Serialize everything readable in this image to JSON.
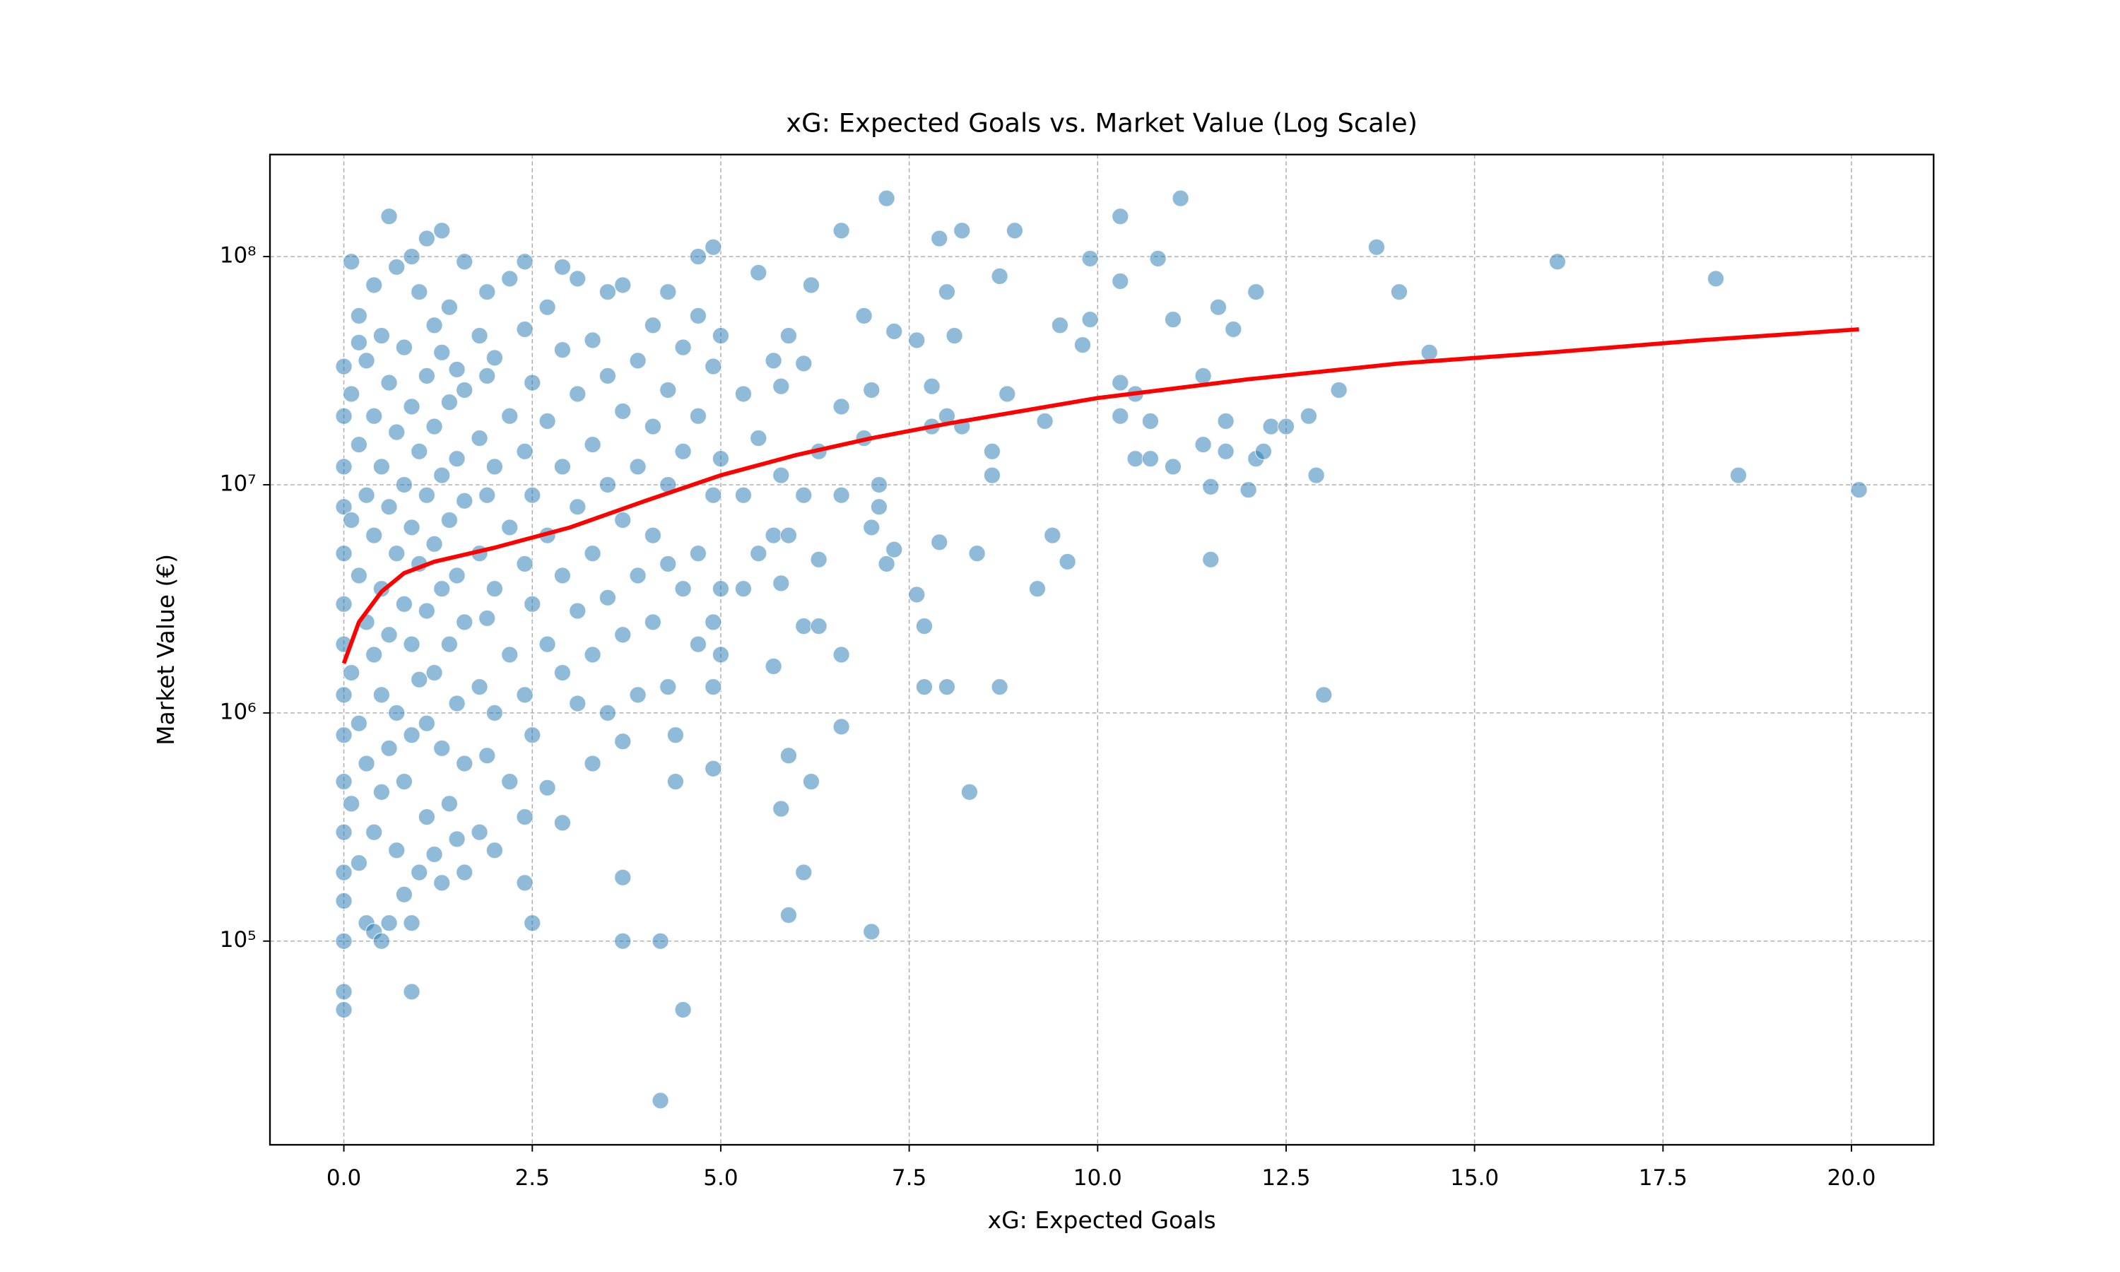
{
  "chart_data": {
    "type": "scatter",
    "title": "xG: Expected Goals vs. Market Value (Log Scale)",
    "x_label": "xG: Expected Goals",
    "y_label": "Market Value (€)",
    "xlim": [
      -0.98,
      21.09
    ],
    "ylim": [
      12800,
      280000000
    ],
    "y_scale": "log",
    "grid": true,
    "xticks": [
      {
        "value": 0,
        "label": "0.0"
      },
      2.5,
      {
        "value": 5,
        "label": "5.0"
      },
      7.5,
      {
        "value": 10,
        "label": "10.0"
      },
      12.5,
      {
        "value": 15,
        "label": "15.0"
      },
      17.5,
      {
        "value": 20,
        "label": "20.0"
      }
    ],
    "yticks": [
      {
        "value": 100000,
        "label": "10⁵"
      },
      {
        "value": 1000000,
        "label": "10⁶"
      },
      {
        "value": 10000000,
        "label": "10⁷"
      },
      {
        "value": 100000000,
        "label": "10⁸"
      }
    ],
    "series": [
      {
        "type": "scatter",
        "color": "#1f77b4",
        "alpha": 0.5,
        "x": [
          0,
          0,
          0,
          0,
          0,
          0,
          0,
          0,
          0,
          0,
          0,
          0,
          0,
          0,
          0,
          0,
          0.1,
          0.1,
          0.1,
          0.1,
          0.1,
          0.2,
          0.2,
          0.2,
          0.2,
          0.2,
          0.2,
          0.3,
          0.3,
          0.3,
          0.3,
          0.3,
          0.4,
          0.4,
          0.4,
          0.4,
          0.4,
          0.4,
          0.5,
          0.5,
          0.5,
          0.5,
          0.5,
          0.5,
          0.6,
          0.6,
          0.6,
          0.6,
          0.6,
          0.6,
          0.7,
          0.7,
          0.7,
          0.7,
          0.7,
          0.8,
          0.8,
          0.8,
          0.8,
          0.8,
          0.9,
          0.9,
          0.9,
          0.9,
          0.9,
          0.9,
          0.9,
          1.0,
          1.0,
          1.0,
          1.0,
          1.0,
          1.1,
          1.1,
          1.1,
          1.1,
          1.1,
          1.1,
          1.2,
          1.2,
          1.2,
          1.2,
          1.2,
          1.3,
          1.3,
          1.3,
          1.3,
          1.3,
          1.3,
          1.4,
          1.4,
          1.4,
          1.4,
          1.4,
          1.5,
          1.5,
          1.5,
          1.5,
          1.5,
          1.6,
          1.6,
          1.6,
          1.6,
          1.6,
          1.6,
          1.8,
          1.8,
          1.8,
          1.8,
          1.8,
          1.9,
          1.9,
          1.9,
          1.9,
          1.9,
          2.0,
          2.0,
          2.0,
          2.0,
          2.0,
          2.2,
          2.2,
          2.2,
          2.2,
          2.2,
          2.4,
          2.4,
          2.4,
          2.4,
          2.4,
          2.4,
          2.4,
          2.5,
          2.5,
          2.5,
          2.5,
          2.5,
          2.7,
          2.7,
          2.7,
          2.7,
          2.7,
          2.9,
          2.9,
          2.9,
          2.9,
          2.9,
          2.9,
          3.1,
          3.1,
          3.1,
          3.1,
          3.1,
          3.3,
          3.3,
          3.3,
          3.3,
          3.3,
          3.5,
          3.5,
          3.5,
          3.5,
          3.5,
          3.7,
          3.7,
          3.7,
          3.7,
          3.7,
          3.7,
          3.7,
          3.9,
          3.9,
          3.9,
          3.9,
          4.1,
          4.1,
          4.1,
          4.1,
          4.2,
          4.2,
          4.3,
          4.3,
          4.3,
          4.3,
          4.3,
          4.4,
          4.4,
          4.5,
          4.5,
          4.5,
          4.5,
          4.7,
          4.7,
          4.7,
          4.7,
          4.7,
          4.9,
          4.9,
          4.9,
          4.9,
          4.9,
          4.9,
          5.0,
          5.0,
          5.0,
          5.0,
          5.3,
          5.3,
          5.3,
          5.5,
          5.5,
          5.5,
          5.7,
          5.7,
          5.7,
          5.8,
          5.8,
          5.8,
          5.8,
          5.9,
          5.9,
          5.9,
          5.9,
          6.1,
          6.1,
          6.1,
          6.1,
          6.2,
          6.2,
          6.3,
          6.3,
          6.3,
          6.6,
          6.6,
          6.6,
          6.6,
          6.6,
          6.9,
          6.9,
          7.0,
          7.0,
          7.0,
          7.1,
          7.1,
          7.2,
          7.2,
          7.3,
          7.3,
          7.6,
          7.6,
          7.7,
          7.7,
          7.8,
          7.8,
          7.9,
          7.9,
          8.0,
          8.0,
          8.0,
          8.1,
          8.2,
          8.2,
          8.3,
          8.4,
          8.6,
          8.6,
          8.7,
          8.7,
          8.8,
          8.9,
          9.2,
          9.3,
          9.4,
          9.5,
          9.6,
          9.8,
          9.9,
          9.9,
          10.3,
          10.3,
          10.3,
          10.3,
          10.5,
          10.5,
          10.7,
          10.7,
          10.8,
          11.0,
          11.0,
          11.1,
          11.4,
          11.4,
          11.5,
          11.5,
          11.6,
          11.7,
          11.7,
          11.8,
          12.0,
          12.1,
          12.1,
          12.2,
          12.3,
          12.5,
          12.8,
          12.9,
          13.0,
          13.2,
          13.7,
          14.0,
          14.4,
          16.1,
          18.2,
          18.5,
          20.1
        ],
        "values": [
          50000.0,
          60000.0,
          100000.0,
          150000.0,
          200000.0,
          300000.0,
          500000.0,
          800000.0,
          1200000.0,
          2000000.0,
          3000000.0,
          5000000.0,
          8000000.0,
          12000000.0,
          20000000.0,
          33000000.0,
          95000000.0,
          400000.0,
          1500000.0,
          7000000.0,
          25000000.0,
          42000000.0,
          220000.0,
          900000.0,
          4000000.0,
          15000000.0,
          55000000.0,
          120000.0,
          600000.0,
          2500000.0,
          9000000.0,
          35000000.0,
          110000.0,
          300000.0,
          1800000.0,
          6000000.0,
          20000000.0,
          75000000.0,
          100000.0,
          450000.0,
          1200000.0,
          3500000.0,
          12000000.0,
          45000000.0,
          150000000.0,
          120000.0,
          700000.0,
          2200000.0,
          8000000.0,
          28000000.0,
          250000.0,
          1000000.0,
          5000000.0,
          17000000.0,
          90000000.0,
          160000.0,
          500000.0,
          3000000.0,
          10000000.0,
          40000000.0,
          60000.0,
          120000.0,
          800000.0,
          2000000.0,
          6500000.0,
          22000000.0,
          100000000.0,
          200000.0,
          1400000.0,
          4500000.0,
          14000000.0,
          70000000.0,
          120000000.0,
          350000.0,
          900000.0,
          2800000.0,
          9000000.0,
          30000000.0,
          240000.0,
          1500000.0,
          5500000.0,
          18000000.0,
          50000000.0,
          130000000.0,
          180000.0,
          700000.0,
          3500000.0,
          11000000.0,
          38000000.0,
          400000.0,
          2000000.0,
          7000000.0,
          23000000.0,
          60000000.0,
          280000.0,
          1100000.0,
          4000000.0,
          13000000.0,
          32000000.0,
          200000.0,
          600000.0,
          2500000.0,
          8500000.0,
          26000000.0,
          95000000.0,
          300000.0,
          1300000.0,
          5000000.0,
          16000000.0,
          45000000.0,
          650000.0,
          2600000.0,
          9000000.0,
          30000000.0,
          70000000.0,
          250000.0,
          1000000.0,
          3500000.0,
          12000000.0,
          36000000.0,
          500000.0,
          1800000.0,
          6500000.0,
          20000000.0,
          80000000.0,
          180000.0,
          350000.0,
          1200000.0,
          4500000.0,
          14000000.0,
          48000000.0,
          95000000.0,
          120000.0,
          800000.0,
          3000000.0,
          9000000.0,
          28000000.0,
          470000.0,
          2000000.0,
          6000000.0,
          19000000.0,
          60000000.0,
          330000.0,
          1500000.0,
          4000000.0,
          12000000.0,
          39000000.0,
          90000000.0,
          1100000.0,
          2800000.0,
          8000000.0,
          25000000.0,
          80000000.0,
          600000.0,
          1800000.0,
          5000000.0,
          15000000.0,
          43000000.0,
          1000000.0,
          3200000.0,
          10000000.0,
          30000000.0,
          70000000.0,
          100000.0,
          190000.0,
          750000.0,
          2200000.0,
          7000000.0,
          21000000.0,
          75000000.0,
          1200000.0,
          4000000.0,
          12000000.0,
          35000000.0,
          2500000.0,
          6000000.0,
          18000000.0,
          50000000.0,
          20000.0,
          100000.0,
          1300000.0,
          4500000.0,
          10000000.0,
          26000000.0,
          70000000.0,
          500000.0,
          800000.0,
          50000.0,
          3500000.0,
          14000000.0,
          40000000.0,
          2000000.0,
          5000000.0,
          20000000.0,
          55000000.0,
          100000000.0,
          570000.0,
          1300000.0,
          2500000.0,
          9000000.0,
          33000000.0,
          110000000.0,
          1800000.0,
          3500000.0,
          13000000.0,
          45000000.0,
          3500000.0,
          9000000.0,
          25000000.0,
          5000000.0,
          16000000.0,
          85000000.0,
          1600000.0,
          6000000.0,
          35000000.0,
          380000.0,
          3700000.0,
          11000000.0,
          27000000.0,
          130000.0,
          650000.0,
          6000000.0,
          45000000.0,
          200000.0,
          2400000.0,
          9000000.0,
          34000000.0,
          500000.0,
          75000000.0,
          2400000.0,
          14000000.0,
          4700000.0,
          870000.0,
          1800000.0,
          9000000.0,
          22000000.0,
          130000000.0,
          55000000.0,
          16000000.0,
          110000.0,
          6500000.0,
          26000000.0,
          8000000.0,
          10000000.0,
          4500000.0,
          180000000.0,
          47000000.0,
          5200000.0,
          3300000.0,
          43000000.0,
          2400000.0,
          1300000.0,
          27000000.0,
          18000000.0,
          5600000.0,
          120000000.0,
          70000000.0,
          1300000.0,
          20000000.0,
          45000000.0,
          130000000.0,
          18000000.0,
          450000.0,
          5000000.0,
          11000000.0,
          14000000.0,
          1300000.0,
          82000000.0,
          25000000.0,
          130000000.0,
          3500000.0,
          19000000.0,
          6000000.0,
          50000000.0,
          4600000.0,
          41000000.0,
          98000000.0,
          53000000.0,
          150000000.0,
          28000000.0,
          20000000.0,
          78000000.0,
          13000000.0,
          25000000.0,
          19000000.0,
          13000000.0,
          98000000.0,
          53000000.0,
          12000000.0,
          180000000.0,
          30000000.0,
          15000000.0,
          9800000.0,
          4700000.0,
          60000000.0,
          14000000.0,
          19000000.0,
          48000000.0,
          9500000.0,
          13000000.0,
          70000000.0,
          14000000.0,
          18000000.0,
          18000000.0,
          20000000.0,
          11000000.0,
          1200000.0,
          26000000.0,
          110000000.0,
          70000000.0,
          38000000.0,
          95000000.0,
          80000000.0,
          11000000.0,
          9500000.0
        ]
      },
      {
        "type": "line",
        "color": "#ff0000",
        "x": [
          0,
          0.2,
          0.5,
          0.8,
          1.2,
          2,
          3,
          4,
          5,
          6,
          7,
          8,
          10,
          12,
          14,
          16,
          18,
          20.1
        ],
        "values": [
          1650000.0,
          2500000.0,
          3400000.0,
          4100000.0,
          4600000.0,
          5300000.0,
          6500000.0,
          8500000.0,
          11000000.0,
          13500000.0,
          16000000.0,
          18500000.0,
          24000000.0,
          29000000.0,
          34000000.0,
          38000000.0,
          43000000.0,
          48000000.0
        ]
      }
    ]
  }
}
